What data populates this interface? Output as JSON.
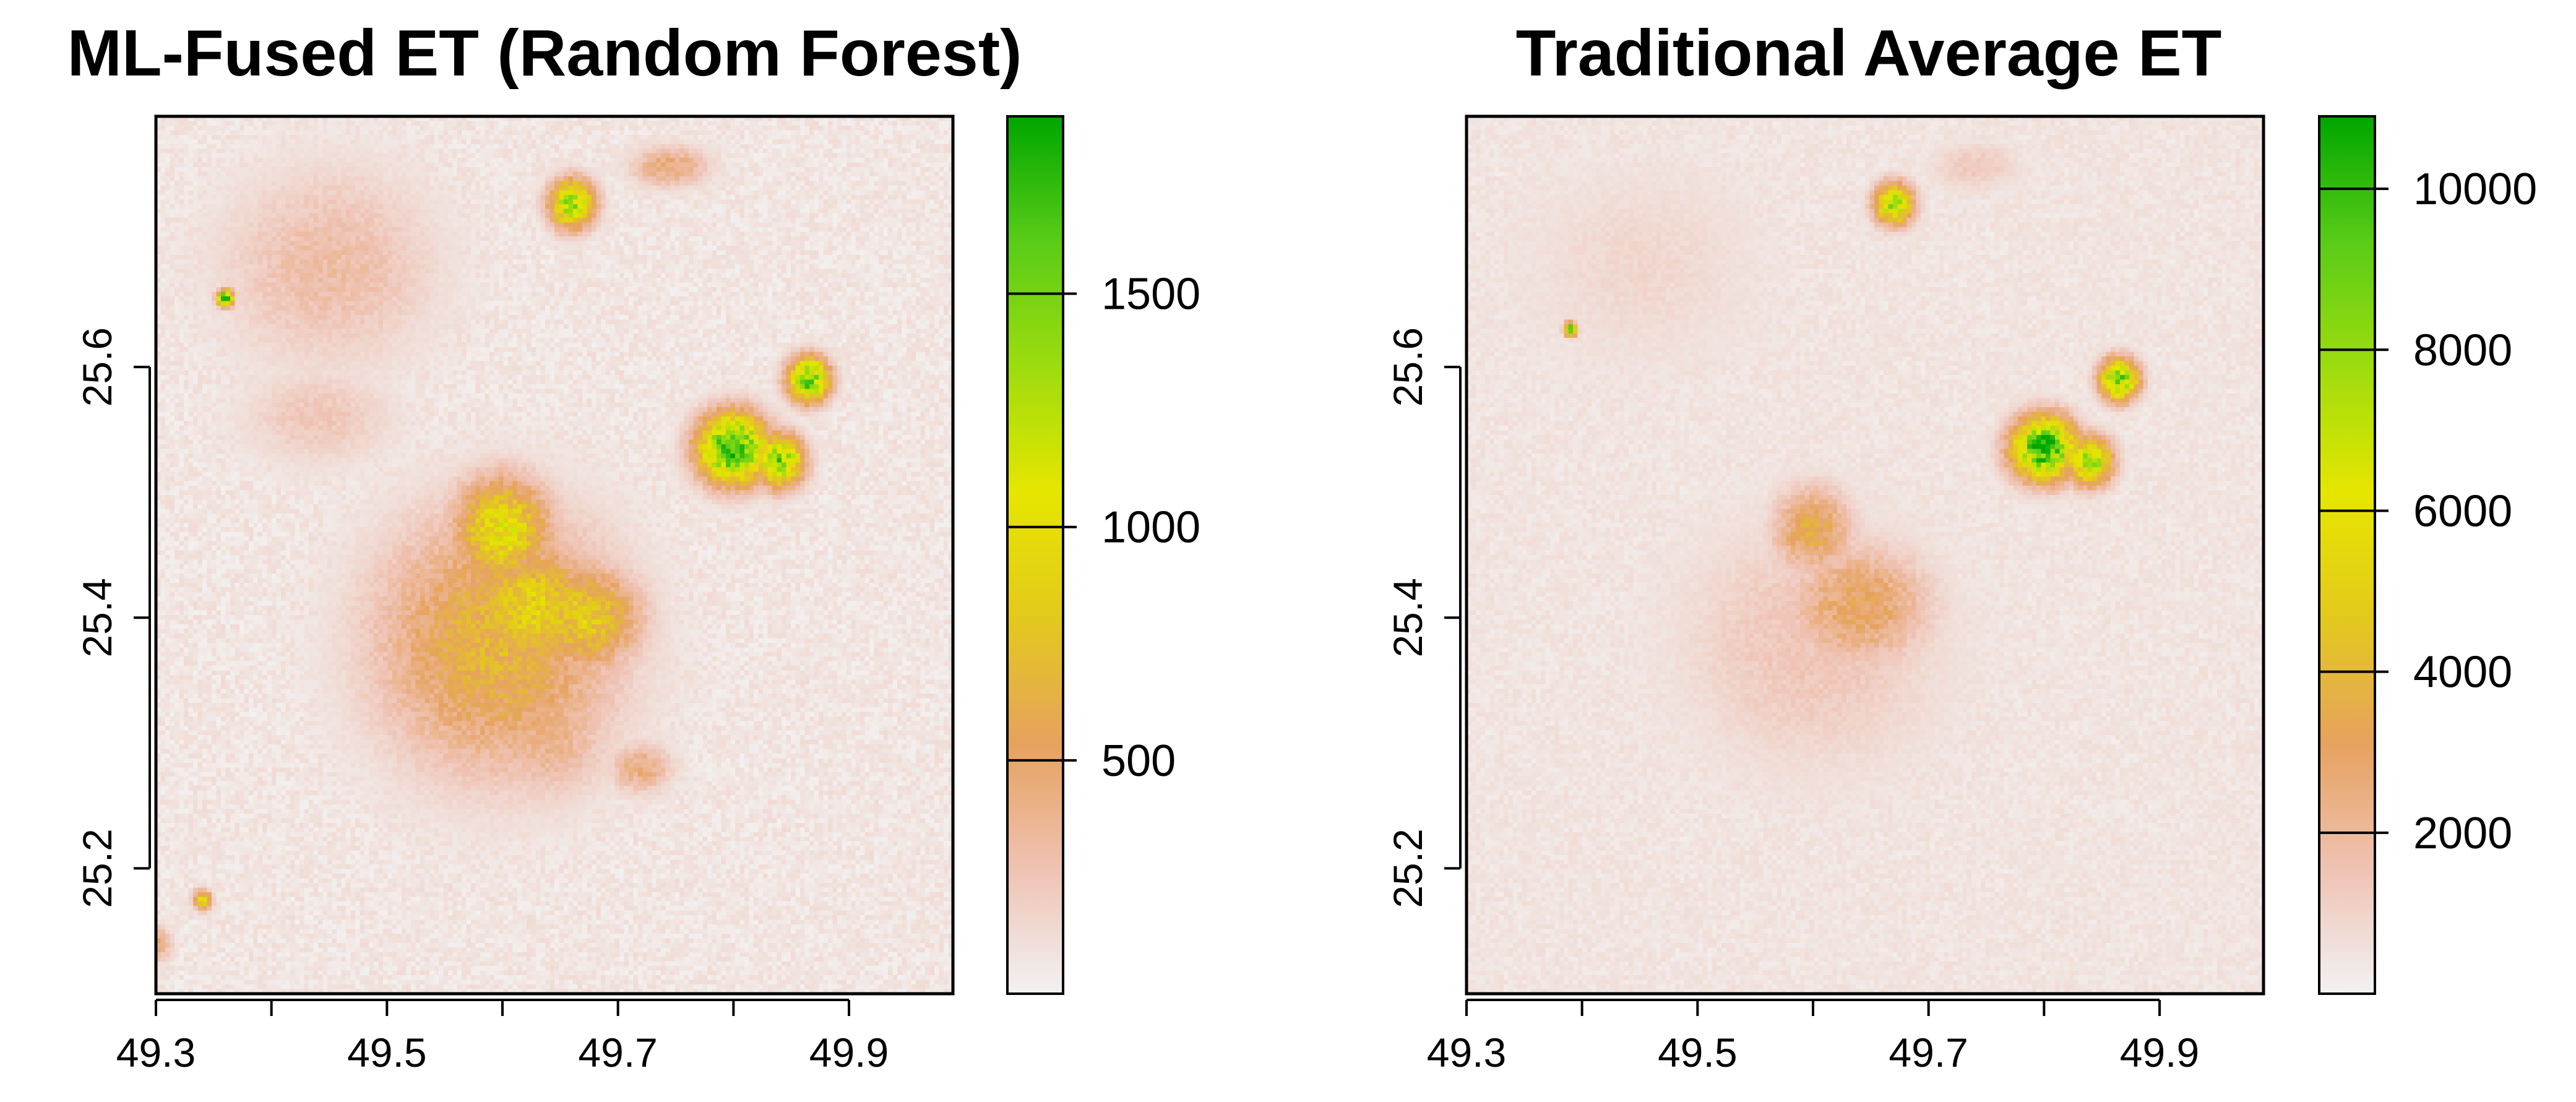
{
  "chart_data": [
    {
      "type": "heatmap",
      "title": "ML-Fused ET (Random Forest)",
      "xlabel": "",
      "ylabel": "",
      "xlim": [
        49.3,
        49.99
      ],
      "ylim": [
        25.1,
        25.8
      ],
      "x_ticks": [
        "49.3",
        "49.5",
        "49.7",
        "49.9"
      ],
      "x_minor_ticks": [
        49.4,
        49.6,
        49.8
      ],
      "y_ticks": [
        "25.2",
        "25.4",
        "25.6"
      ],
      "colorbar": {
        "min": 0,
        "max": 1880,
        "ticks": [
          500,
          1000,
          1500
        ],
        "tick_labels": [
          "500",
          "1000",
          "1500"
        ],
        "colors": [
          "#F2F2F2",
          "#EFC2B3",
          "#E6A25E",
          "#E3C91C",
          "#E6E600",
          "#9EDC0E",
          "#59CC17",
          "#00A600"
        ]
      },
      "hotspots": [
        {
          "x": 49.595,
          "y": 25.38,
          "sx": 0.075,
          "sy": 0.075,
          "value": 700
        },
        {
          "x": 49.6,
          "y": 25.47,
          "sx": 0.03,
          "sy": 0.03,
          "value": 1050
        },
        {
          "x": 49.625,
          "y": 25.41,
          "sx": 0.04,
          "sy": 0.035,
          "value": 920
        },
        {
          "x": 49.67,
          "y": 25.4,
          "sx": 0.035,
          "sy": 0.03,
          "value": 880
        },
        {
          "x": 49.66,
          "y": 25.73,
          "sx": 0.014,
          "sy": 0.014,
          "value": 1400
        },
        {
          "x": 49.8,
          "y": 25.535,
          "sx": 0.022,
          "sy": 0.02,
          "value": 1800
        },
        {
          "x": 49.84,
          "y": 25.525,
          "sx": 0.015,
          "sy": 0.015,
          "value": 1500
        },
        {
          "x": 49.865,
          "y": 25.59,
          "sx": 0.013,
          "sy": 0.013,
          "value": 1600
        },
        {
          "x": 49.45,
          "y": 25.68,
          "sx": 0.07,
          "sy": 0.06,
          "value": 320
        },
        {
          "x": 49.64,
          "y": 25.31,
          "sx": 0.04,
          "sy": 0.04,
          "value": 420
        },
        {
          "x": 49.44,
          "y": 25.56,
          "sx": 0.05,
          "sy": 0.03,
          "value": 250
        },
        {
          "x": 49.36,
          "y": 25.655,
          "sx": 0.005,
          "sy": 0.005,
          "value": 1700
        },
        {
          "x": 49.34,
          "y": 25.175,
          "sx": 0.006,
          "sy": 0.006,
          "value": 900
        },
        {
          "x": 49.3,
          "y": 25.14,
          "sx": 0.01,
          "sy": 0.01,
          "value": 500
        },
        {
          "x": 49.745,
          "y": 25.76,
          "sx": 0.025,
          "sy": 0.012,
          "value": 480
        },
        {
          "x": 49.72,
          "y": 25.28,
          "sx": 0.02,
          "sy": 0.015,
          "value": 450
        }
      ]
    },
    {
      "type": "heatmap",
      "title": "Traditional Average ET",
      "xlabel": "",
      "ylabel": "",
      "xlim": [
        49.3,
        49.99
      ],
      "ylim": [
        25.1,
        25.8
      ],
      "x_ticks": [
        "49.3",
        "49.5",
        "49.7",
        "49.9"
      ],
      "x_minor_ticks": [
        49.4,
        49.6,
        49.8
      ],
      "y_ticks": [
        "25.2",
        "25.4",
        "25.6"
      ],
      "colorbar": {
        "min": 0,
        "max": 10900,
        "ticks": [
          2000,
          4000,
          6000,
          8000,
          10000
        ],
        "tick_labels": [
          "2000",
          "4000",
          "6000",
          "8000",
          "10000"
        ],
        "colors": [
          "#F2F2F2",
          "#EFC2B3",
          "#E6A25E",
          "#E3C91C",
          "#E6E600",
          "#9EDC0E",
          "#59CC17",
          "#00A600"
        ]
      },
      "hotspots": [
        {
          "x": 49.6,
          "y": 25.47,
          "sx": 0.025,
          "sy": 0.025,
          "value": 3600
        },
        {
          "x": 49.64,
          "y": 25.41,
          "sx": 0.045,
          "sy": 0.035,
          "value": 3200
        },
        {
          "x": 49.6,
          "y": 25.38,
          "sx": 0.09,
          "sy": 0.08,
          "value": 1500
        },
        {
          "x": 49.67,
          "y": 25.73,
          "sx": 0.012,
          "sy": 0.012,
          "value": 7800
        },
        {
          "x": 49.8,
          "y": 25.535,
          "sx": 0.02,
          "sy": 0.018,
          "value": 10600
        },
        {
          "x": 49.84,
          "y": 25.525,
          "sx": 0.014,
          "sy": 0.014,
          "value": 8000
        },
        {
          "x": 49.865,
          "y": 25.59,
          "sx": 0.012,
          "sy": 0.012,
          "value": 9000
        },
        {
          "x": 49.45,
          "y": 25.68,
          "sx": 0.09,
          "sy": 0.07,
          "value": 900
        },
        {
          "x": 49.39,
          "y": 25.63,
          "sx": 0.004,
          "sy": 0.004,
          "value": 9500
        },
        {
          "x": 49.74,
          "y": 25.76,
          "sx": 0.03,
          "sy": 0.015,
          "value": 1400
        }
      ]
    }
  ]
}
